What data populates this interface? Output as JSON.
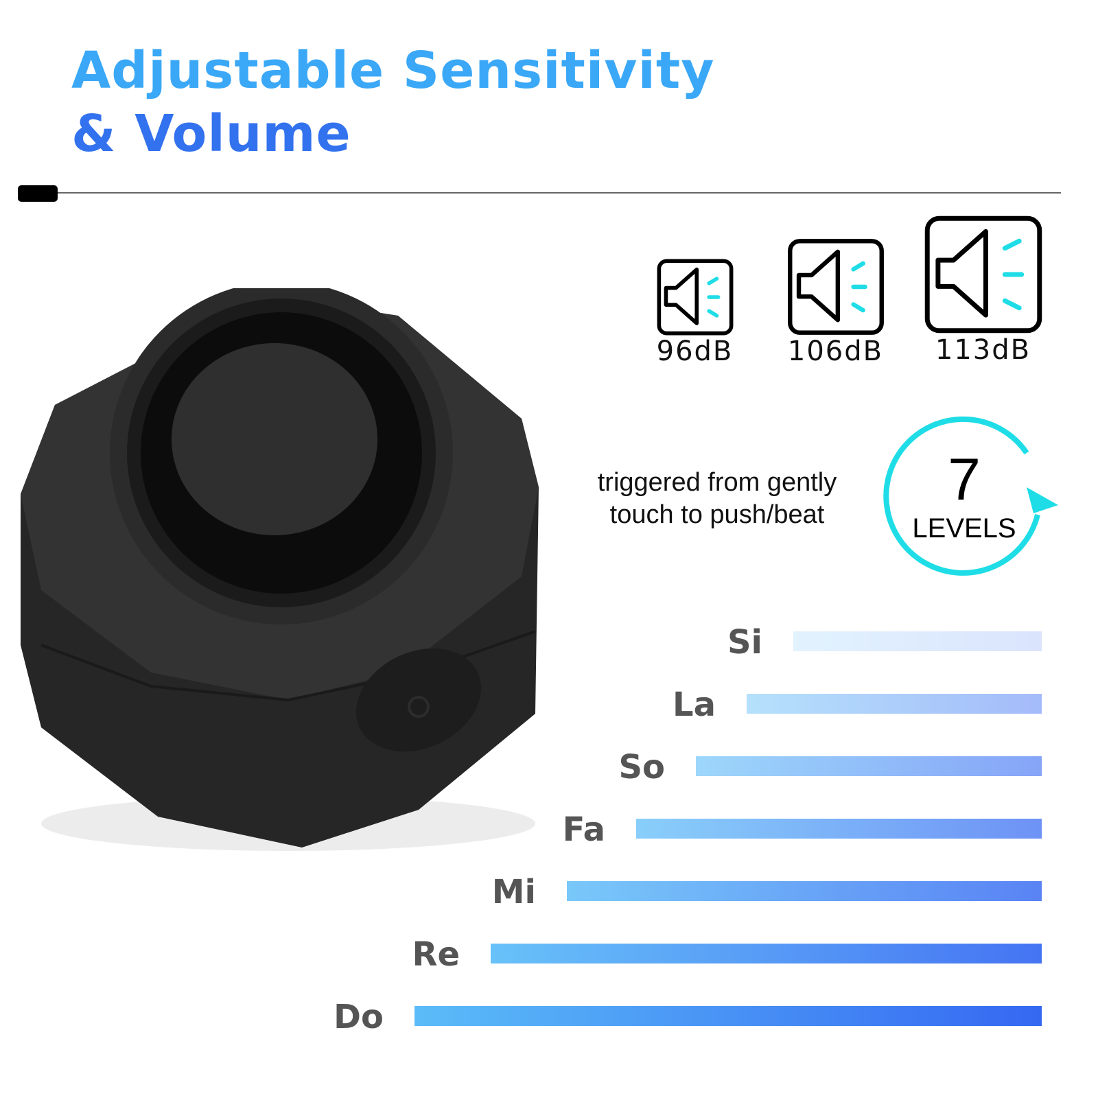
{
  "title": {
    "line1": "Adjustable Sensitivity",
    "line2": "& Volume"
  },
  "volume_levels": [
    {
      "label": "96dB",
      "icon": "speaker-icon"
    },
    {
      "label": "106dB",
      "icon": "speaker-icon"
    },
    {
      "label": "113dB",
      "icon": "speaker-icon"
    }
  ],
  "sensitivity": {
    "description_line1": "triggered from gently",
    "description_line2": "touch to push/beat",
    "levels_number": "7",
    "levels_label": "LEVELS"
  },
  "tones": [
    "Si",
    "La",
    "So",
    "Fa",
    "Mi",
    "Re",
    "Do"
  ],
  "colors": {
    "title_top": "#3aa8f6",
    "title_bottom": "#3372ee",
    "accent_cyan": "#1fdde6",
    "bar_light": "#5bbcf8",
    "bar_dark": "#3568f2"
  }
}
